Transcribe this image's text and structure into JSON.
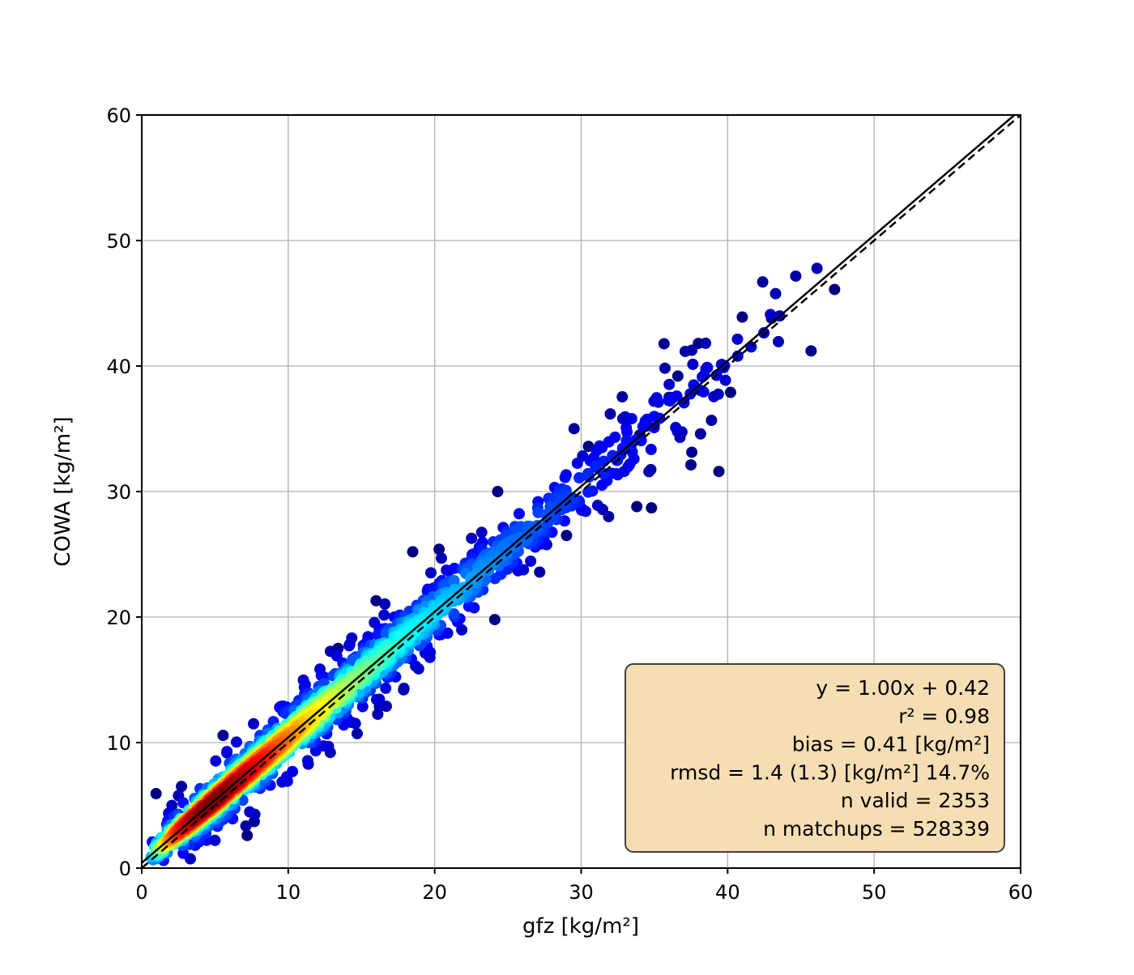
{
  "figure": {
    "background": "#ffffff"
  },
  "chart_data": {
    "type": "scatter",
    "title": "",
    "xlabel": "gfz [kg/m²]",
    "ylabel": "COWA [kg/m²]",
    "xlim": [
      0,
      60
    ],
    "ylim": [
      0,
      60
    ],
    "xticks": [
      0,
      10,
      20,
      30,
      40,
      50,
      60
    ],
    "yticks": [
      0,
      10,
      20,
      30,
      40,
      50,
      60
    ],
    "grid": true,
    "grid_color": "#b0b0b0",
    "axes_color": "#000000",
    "colormap": "jet",
    "point_color_low_density": "#000080",
    "point_color_high_density": "#ff0000",
    "identity_line": {
      "style": "dashed",
      "color": "#000000",
      "slope": 1.0,
      "intercept": 0.0
    },
    "regression_line": {
      "style": "solid",
      "color": "#000000",
      "slope": 1.0,
      "intercept": 0.42
    },
    "stats_box": {
      "fill": "#f5deb3",
      "border": "#404040",
      "lines": [
        "y = 1.00x + 0.42",
        "r² = 0.98",
        "bias = 0.41 [kg/m²]",
        "rmsd = 1.4 (1.3) [kg/m²] 14.7%",
        "n valid = 2353",
        "n matchups = 528339"
      ]
    },
    "n_points": 2353,
    "distribution": {
      "seed": 42,
      "comment": "density-colored scatter concentrated along the 1:1 line; core density (red) near x=4-13, decreasing (yellow/green/cyan/blue) outward and toward high values",
      "x_mixture": [
        {
          "weight": 0.62,
          "gamma_k": 3,
          "gamma_theta": 2.6
        },
        {
          "weight": 0.38,
          "gamma_k": 3,
          "gamma_theta": 6.0
        }
      ],
      "noise": {
        "core_prob": 0.78,
        "core_sigma": [
          0.35,
          0.03
        ],
        "outlier_sigma": [
          1.0,
          0.06
        ]
      },
      "x_range": [
        0.3,
        47.5
      ]
    },
    "notable_points": [
      [
        41.0,
        43.9
      ],
      [
        43.0,
        43.8
      ],
      [
        47.3,
        46.1
      ],
      [
        38.0,
        41.8
      ],
      [
        36.6,
        39.2
      ],
      [
        40.2,
        37.9
      ],
      [
        39.4,
        31.6
      ],
      [
        34.8,
        28.7
      ],
      [
        33.8,
        28.8
      ],
      [
        24.3,
        30.0
      ],
      [
        18.5,
        25.2
      ],
      [
        20.3,
        25.4
      ],
      [
        7.2,
        2.6
      ],
      [
        24.1,
        19.8
      ],
      [
        13.4,
        17.5
      ],
      [
        29.0,
        26.5
      ],
      [
        34.0,
        34.5
      ],
      [
        36.0,
        37.5
      ],
      [
        30.5,
        33.6
      ],
      [
        16.0,
        21.3
      ]
    ]
  }
}
